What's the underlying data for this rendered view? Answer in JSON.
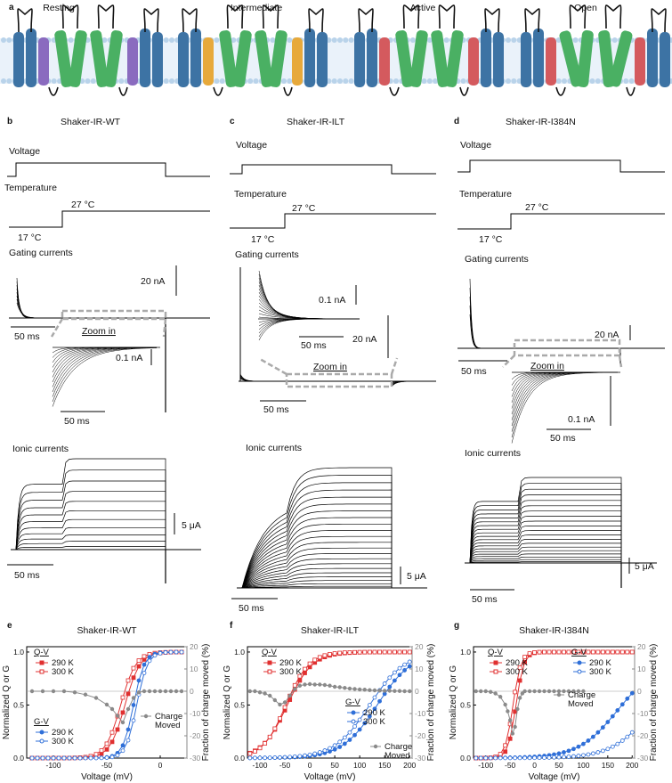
{
  "panel_a": {
    "letter": "a",
    "states": [
      "Resting",
      "Intermediate",
      "Active",
      "Open"
    ],
    "colors": {
      "helix_blue": "#3d73a4",
      "helix_green": "#4ab063",
      "helix_purple": "#8a6bbf",
      "helix_orange": "#e7a93b",
      "helix_red": "#d45a5e",
      "membrane": "#b9d3ea"
    }
  },
  "columns": [
    {
      "letter": "b",
      "title": "Shaker-IR-WT",
      "voltage": "Voltage",
      "temperature": "Temperature",
      "temp_high": "27 °C",
      "temp_low": "17 °C",
      "gating": "Gating currents",
      "gating_scale": "20 nA",
      "zoom_scale": "0.1 nA",
      "time_scale": "50 ms",
      "zoom_time": "50 ms",
      "zoom": "Zoom in",
      "ionic": "Ionic currents",
      "ionic_scale": "5 μA",
      "ionic_time": "50 ms"
    },
    {
      "letter": "c",
      "title": "Shaker-IR-ILT",
      "voltage": "Voltage",
      "temperature": "Temperature",
      "temp_high": "27 °C",
      "temp_low": "17 °C",
      "gating": "Gating currents",
      "gating_scale": "20 nA",
      "zoom_scale": "0.1 nA",
      "time_scale": "50 ms",
      "zoom_time": "50 ms",
      "zoom": "Zoom in",
      "ionic": "Ionic currents",
      "ionic_scale": "5 μA",
      "ionic_time": "50 ms"
    },
    {
      "letter": "d",
      "title": "Shaker-IR-I384N",
      "voltage": "Voltage",
      "temperature": "Temperature",
      "temp_high": "27 °C",
      "temp_low": "17 °C",
      "gating": "Gating currents",
      "gating_scale": "20 nA",
      "zoom_scale": "0.1 nA",
      "time_scale": "50 ms",
      "zoom_time": "50 ms",
      "zoom": "Zoom in",
      "ionic": "Ionic currents",
      "ionic_scale": "5 μA",
      "ionic_time": "50 ms"
    }
  ],
  "chart_data": [
    {
      "panel": "e",
      "title": "Shaker-IR-WT",
      "type": "scatter",
      "xlabel": "Voltage (mV)",
      "ylabel": "Normalized Q or G",
      "y2label": "Fraction of charge moved (%)",
      "xlim": [
        -125,
        25
      ],
      "ylim": [
        0,
        1.05
      ],
      "y2lim": [
        -30,
        20
      ],
      "xticks": [
        -100,
        -50,
        0
      ],
      "yticks": [
        0.0,
        0.5,
        1.0
      ],
      "y2ticks": [
        -30,
        -20,
        -10,
        0,
        10,
        20
      ],
      "legend_qv": "Q-V",
      "legend_gv": "G-V",
      "legend_cm": "Charge Moved",
      "series": [
        {
          "name": "290 K",
          "group": "Q-V",
          "color": "#e03030",
          "filled": true,
          "v_half": -33,
          "slope": 7
        },
        {
          "name": "300 K",
          "group": "Q-V",
          "color": "#e03030",
          "filled": false,
          "v_half": -37,
          "slope": 7
        },
        {
          "name": "290 K",
          "group": "G-V",
          "color": "#2f6fd8",
          "filled": true,
          "v_half": -25,
          "slope": 5
        },
        {
          "name": "300 K",
          "group": "G-V",
          "color": "#2f6fd8",
          "filled": false,
          "v_half": -22,
          "slope": 5
        },
        {
          "name": "Charge Moved",
          "group": "CM",
          "color": "#8a8a8a",
          "filled": true,
          "x": [
            -120,
            -110,
            -100,
            -90,
            -80,
            -70,
            -60,
            -50,
            -45,
            -40,
            -35,
            -30,
            -25,
            -20,
            -15,
            -10,
            -5,
            0,
            5,
            10,
            15,
            20
          ],
          "y": [
            0,
            0,
            0,
            0,
            -0.5,
            -1.5,
            -3,
            -6,
            -8,
            -11,
            -14,
            -8,
            -3,
            -0.5,
            0,
            0,
            0,
            0,
            0,
            0,
            0,
            0
          ]
        }
      ]
    },
    {
      "panel": "f",
      "title": "Shaker-IR-ILT",
      "type": "scatter",
      "xlabel": "Voltage (mV)",
      "ylabel": "Normalized Q or G",
      "y2label": "Fraction of charge moved (%)",
      "xlim": [
        -125,
        205
      ],
      "ylim": [
        0,
        1.05
      ],
      "y2lim": [
        -30,
        20
      ],
      "xticks": [
        -100,
        -50,
        0,
        50,
        100,
        150,
        200
      ],
      "yticks": [
        0.0,
        0.5,
        1.0
      ],
      "y2ticks": [
        -30,
        -20,
        -10,
        0,
        10,
        20
      ],
      "legend_qv": "Q-V",
      "legend_gv": "G-V",
      "legend_cm": "Charge Moved",
      "series": [
        {
          "name": "290 K",
          "group": "Q-V",
          "color": "#e03030",
          "filled": true,
          "v_half": -45,
          "slope": 25
        },
        {
          "name": "300 K",
          "group": "Q-V",
          "color": "#e03030",
          "filled": false,
          "v_half": -48,
          "slope": 23
        },
        {
          "name": "290 K",
          "group": "G-V",
          "color": "#2f6fd8",
          "filled": true,
          "v_half": 135,
          "slope": 35
        },
        {
          "name": "300 K",
          "group": "G-V",
          "color": "#2f6fd8",
          "filled": false,
          "v_half": 120,
          "slope": 35
        },
        {
          "name": "Charge Moved",
          "group": "CM",
          "color": "#8a8a8a",
          "filled": true,
          "x": [
            -120,
            -110,
            -100,
            -90,
            -80,
            -70,
            -60,
            -50,
            -40,
            -30,
            -20,
            -10,
            0,
            10,
            20,
            30,
            40,
            50,
            60,
            70,
            80,
            90,
            100,
            110,
            120,
            130,
            140,
            150,
            160,
            170,
            180,
            190,
            200
          ],
          "y": [
            0,
            0,
            -0.5,
            -1,
            -2,
            -4,
            -6,
            -5,
            -2,
            1,
            2.5,
            3,
            3.2,
            3,
            3,
            2.8,
            2.5,
            2,
            1.8,
            1.5,
            1.2,
            1,
            0.8,
            0.7,
            0.5,
            0.4,
            0.3,
            0.2,
            0.2,
            0.1,
            0.1,
            0,
            0
          ]
        }
      ]
    },
    {
      "panel": "g",
      "title": "Shaker-IR-I384N",
      "type": "scatter",
      "xlabel": "Voltage (mV)",
      "ylabel": "Normalized Q or G",
      "y2label": "Fraction of charge moved (%)",
      "xlim": [
        -125,
        205
      ],
      "ylim": [
        0,
        1.05
      ],
      "y2lim": [
        -30,
        20
      ],
      "xticks": [
        -100,
        -50,
        0,
        50,
        100,
        150,
        200
      ],
      "yticks": [
        0.0,
        0.5,
        1.0
      ],
      "y2ticks": [
        -30,
        -20,
        -10,
        0,
        10,
        20
      ],
      "legend_qv": "Q-V",
      "legend_gv": "G-V",
      "legend_cm": "Charge Moved",
      "series": [
        {
          "name": "290 K",
          "group": "Q-V",
          "color": "#e03030",
          "filled": true,
          "v_half": -38,
          "slope": 8
        },
        {
          "name": "300 K",
          "group": "Q-V",
          "color": "#e03030",
          "filled": false,
          "v_half": -44,
          "slope": 8
        },
        {
          "name": "290 K",
          "group": "G-V",
          "color": "#2f6fd8",
          "filled": true,
          "v_half": 170,
          "slope": 40
        },
        {
          "name": "300 K",
          "group": "G-V",
          "color": "#2f6fd8",
          "filled": false,
          "v_half": 240,
          "slope": 40
        },
        {
          "name": "Charge Moved",
          "group": "CM",
          "color": "#8a8a8a",
          "filled": true,
          "x": [
            -120,
            -110,
            -100,
            -90,
            -80,
            -70,
            -60,
            -55,
            -50,
            -45,
            -40,
            -35,
            -30,
            -25,
            -20,
            -10,
            0,
            10,
            20,
            30,
            40,
            50,
            60,
            70,
            80,
            90,
            100
          ],
          "y": [
            0,
            0,
            0,
            -0.3,
            -1,
            -2.5,
            -6,
            -9,
            -13,
            -19,
            -16,
            -8,
            -3,
            -1,
            0,
            0,
            0,
            0,
            0,
            0,
            0,
            0,
            0,
            0,
            0,
            0,
            0
          ]
        }
      ]
    }
  ]
}
